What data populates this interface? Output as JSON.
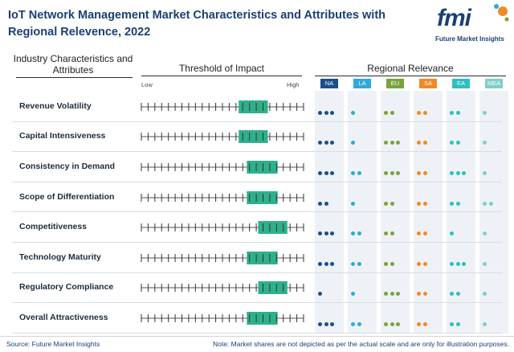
{
  "header": {
    "title": "IoT Network Management Market Characteristics and Attributes with Regional Relevence, 2022",
    "logo_text": "fmi",
    "logo_subtitle": "Future Market Insights"
  },
  "chart_data": {
    "type": "table",
    "columns": {
      "characteristics": "Industry Characteristics and Attributes",
      "threshold": "Threshold of Impact",
      "regional": "Regional Relevance"
    },
    "scale_labels": {
      "low": "Low",
      "high": "High"
    },
    "regions": [
      {
        "code": "NA",
        "color": "#1a4f8b"
      },
      {
        "code": "LA",
        "color": "#2fa9d8"
      },
      {
        "code": "EU",
        "color": "#7aa33a"
      },
      {
        "code": "SA",
        "color": "#f08a24"
      },
      {
        "code": "EA",
        "color": "#2ebfc0"
      },
      {
        "code": "MEA",
        "color": "#7fd0c8"
      }
    ],
    "scale_ticks": 24,
    "rows": [
      {
        "label": "Revenue Volatility",
        "impact": [
          0.6,
          0.78
        ],
        "regional": [
          3,
          1,
          2,
          2,
          2,
          1
        ]
      },
      {
        "label": "Capital Intensiveness",
        "impact": [
          0.6,
          0.78
        ],
        "regional": [
          3,
          1,
          3,
          2,
          2,
          1
        ]
      },
      {
        "label": "Consistency in Demand",
        "impact": [
          0.65,
          0.84
        ],
        "regional": [
          3,
          2,
          3,
          2,
          3,
          1
        ]
      },
      {
        "label": "Scope of Differentiation",
        "impact": [
          0.65,
          0.84
        ],
        "regional": [
          2,
          1,
          2,
          2,
          2,
          2
        ]
      },
      {
        "label": "Competitiveness",
        "impact": [
          0.72,
          0.9
        ],
        "regional": [
          3,
          2,
          2,
          2,
          1,
          1
        ]
      },
      {
        "label": "Technology Maturity",
        "impact": [
          0.65,
          0.84
        ],
        "regional": [
          3,
          2,
          2,
          2,
          3,
          1
        ]
      },
      {
        "label": "Regulatory Compliance",
        "impact": [
          0.72,
          0.9
        ],
        "regional": [
          1,
          1,
          3,
          2,
          2,
          1
        ]
      },
      {
        "label": "Overall Attractiveness",
        "impact": [
          0.65,
          0.84
        ],
        "regional": [
          3,
          2,
          3,
          2,
          2,
          1
        ]
      }
    ]
  },
  "footer": {
    "source": "Source: Future Market Insights",
    "note": "Note: Market shares are not depicted as per the actual scale and are only for illustration purposes."
  }
}
